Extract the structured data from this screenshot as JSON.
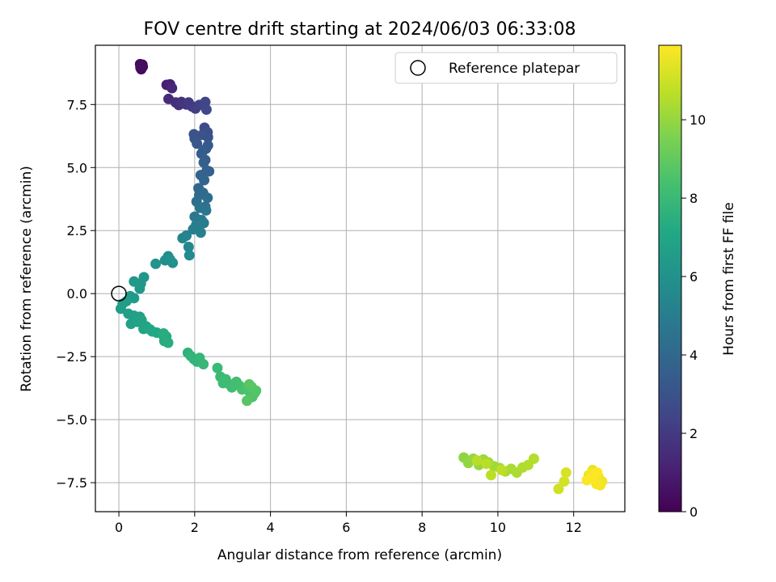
{
  "chart_data": {
    "type": "scatter",
    "title": "FOV centre drift starting at 2024/06/03 06:33:08",
    "xlabel": "Angular distance from reference (arcmin)",
    "ylabel": "Rotation from reference (arcmin)",
    "xlim": [
      -0.62,
      13.35
    ],
    "ylim": [
      -8.65,
      9.85
    ],
    "xticks": [
      0,
      2,
      4,
      6,
      8,
      10,
      12
    ],
    "yticks": [
      -7.5,
      -5.0,
      -2.5,
      0.0,
      2.5,
      5.0,
      7.5
    ],
    "xtick_labels": [
      "0",
      "2",
      "4",
      "6",
      "8",
      "10",
      "12"
    ],
    "ytick_labels": [
      "−7.5",
      "−5.0",
      "−2.5",
      "0.0",
      "2.5",
      "5.0",
      "7.5"
    ],
    "grid": true,
    "legend": {
      "position": "top-right",
      "entries": [
        "Reference platepar"
      ]
    },
    "reference_point": {
      "x": 0,
      "y": 0
    },
    "colorbar": {
      "label": "Hours from first FF file",
      "range": [
        0,
        11.9
      ],
      "ticks": [
        0,
        2,
        4,
        6,
        8,
        10
      ],
      "tick_labels": [
        "0",
        "2",
        "4",
        "6",
        "8",
        "10"
      ],
      "colormap": "viridis"
    },
    "series": [
      {
        "x": [
          0.57,
          0.62,
          0.58,
          0.63,
          0.56,
          0.59,
          0.61,
          0.57,
          1.26,
          1.35,
          1.4,
          1.31,
          1.5,
          1.58,
          1.65,
          1.78,
          1.84,
          1.93,
          2.02,
          2.12,
          2.22,
          2.28,
          2.31,
          2.26,
          2.34,
          2.35,
          2.2,
          2.0,
          1.98,
          2.06,
          2.35,
          2.3,
          2.18,
          2.23,
          2.28,
          2.24,
          2.38,
          2.32,
          2.16,
          2.25,
          2.1,
          2.22,
          2.12,
          2.34,
          2.05,
          2.28,
          2.14,
          2.3,
          2.0,
          2.18,
          2.24,
          2.04,
          1.96,
          2.16,
          1.78,
          1.68,
          1.84,
          1.86,
          1.3,
          1.22,
          1.42,
          1.35,
          0.97,
          0.66,
          0.58,
          0.4,
          0.55,
          0.3,
          0.4,
          0.2,
          0.1,
          0.05,
          0.25,
          0.4,
          0.55,
          0.32,
          0.48,
          0.6,
          0.72,
          0.65,
          0.82,
          0.88,
          1.0,
          1.15,
          1.25,
          1.2,
          1.3,
          1.18,
          1.82,
          1.9,
          1.98,
          2.06,
          2.13,
          2.23,
          2.6,
          2.68,
          2.75,
          2.82,
          2.92,
          2.98,
          3.1,
          3.18,
          3.25,
          3.35,
          3.45,
          3.52,
          3.58,
          3.62,
          3.5,
          3.38,
          3.44,
          9.1,
          9.22,
          9.35,
          9.5,
          9.62,
          9.75,
          9.9,
          10.05,
          10.2,
          10.35,
          10.5,
          10.65,
          10.8,
          10.95,
          9.45,
          9.7,
          9.82,
          10.1,
          11.6,
          11.75,
          11.8,
          12.4,
          12.5,
          12.55,
          12.65,
          12.75,
          12.7,
          12.45,
          12.6,
          12.35,
          12.5,
          12.62
        ],
        "y": [
          9.05,
          9.08,
          8.94,
          9.0,
          9.1,
          8.9,
          9.04,
          8.96,
          8.28,
          8.3,
          8.15,
          7.72,
          7.58,
          7.48,
          7.6,
          7.5,
          7.58,
          7.42,
          7.34,
          7.48,
          7.5,
          7.6,
          7.3,
          6.58,
          6.4,
          6.2,
          6.3,
          6.15,
          6.32,
          5.95,
          5.88,
          5.75,
          5.55,
          5.68,
          5.3,
          5.2,
          4.85,
          4.88,
          4.7,
          4.5,
          4.18,
          4.0,
          3.9,
          3.8,
          3.65,
          3.45,
          3.4,
          3.3,
          3.05,
          2.92,
          2.8,
          2.72,
          2.55,
          2.42,
          2.3,
          2.2,
          1.85,
          1.52,
          1.48,
          1.32,
          1.22,
          1.35,
          1.18,
          0.65,
          0.4,
          0.48,
          0.2,
          -0.1,
          -0.18,
          -0.3,
          -0.4,
          -0.6,
          -0.8,
          -0.88,
          -0.92,
          -1.2,
          -1.12,
          -1.05,
          -1.3,
          -1.4,
          -1.42,
          -1.5,
          -1.55,
          -1.62,
          -1.7,
          -1.88,
          -1.95,
          -1.58,
          -2.35,
          -2.48,
          -2.6,
          -2.7,
          -2.55,
          -2.8,
          -2.95,
          -3.3,
          -3.55,
          -3.4,
          -3.6,
          -3.72,
          -3.5,
          -3.65,
          -3.8,
          -3.75,
          -3.9,
          -4.1,
          -3.95,
          -3.85,
          -3.7,
          -4.25,
          -3.6,
          -6.5,
          -6.72,
          -6.55,
          -6.8,
          -6.58,
          -6.7,
          -6.85,
          -6.92,
          -7.05,
          -6.95,
          -7.1,
          -6.9,
          -6.8,
          -6.55,
          -6.62,
          -6.75,
          -7.2,
          -7.0,
          -7.75,
          -7.45,
          -7.1,
          -7.2,
          -7.0,
          -7.35,
          -7.25,
          -7.45,
          -7.6,
          -7.15,
          -7.55,
          -7.4,
          -7.3,
          -7.1
        ],
        "hours": [
          0.05,
          0.1,
          0.15,
          0.2,
          0.25,
          0.3,
          0.35,
          0.4,
          1.0,
          1.1,
          1.3,
          1.45,
          1.55,
          1.65,
          1.75,
          1.85,
          1.95,
          2.05,
          2.15,
          2.25,
          2.35,
          2.45,
          2.55,
          2.75,
          2.85,
          2.95,
          3.0,
          3.05,
          3.1,
          3.2,
          3.25,
          3.3,
          3.4,
          3.45,
          3.5,
          3.55,
          3.6,
          3.65,
          3.75,
          3.85,
          3.95,
          4.05,
          4.15,
          4.25,
          4.35,
          4.45,
          4.55,
          4.6,
          4.7,
          4.8,
          4.9,
          5.0,
          5.1,
          5.2,
          5.3,
          5.4,
          5.5,
          5.6,
          5.75,
          5.85,
          5.95,
          6.0,
          6.1,
          6.2,
          6.25,
          6.3,
          6.35,
          6.4,
          6.45,
          6.5,
          6.55,
          6.6,
          6.65,
          6.7,
          6.75,
          6.8,
          6.85,
          6.9,
          6.95,
          7.0,
          7.05,
          7.1,
          7.15,
          7.2,
          7.25,
          7.3,
          7.35,
          7.4,
          7.6,
          7.7,
          7.75,
          7.8,
          7.85,
          7.9,
          8.0,
          8.05,
          8.1,
          8.15,
          8.2,
          8.25,
          8.3,
          8.35,
          8.4,
          8.45,
          8.5,
          8.55,
          8.6,
          8.65,
          8.7,
          8.75,
          8.8,
          9.9,
          9.95,
          10.0,
          10.05,
          10.1,
          10.15,
          10.2,
          10.25,
          10.3,
          10.35,
          10.4,
          10.45,
          10.5,
          10.55,
          10.6,
          10.65,
          10.7,
          10.75,
          11.0,
          11.1,
          11.2,
          11.4,
          11.5,
          11.55,
          11.6,
          11.65,
          11.7,
          11.75,
          11.8,
          11.85,
          11.88,
          11.9
        ]
      }
    ]
  }
}
